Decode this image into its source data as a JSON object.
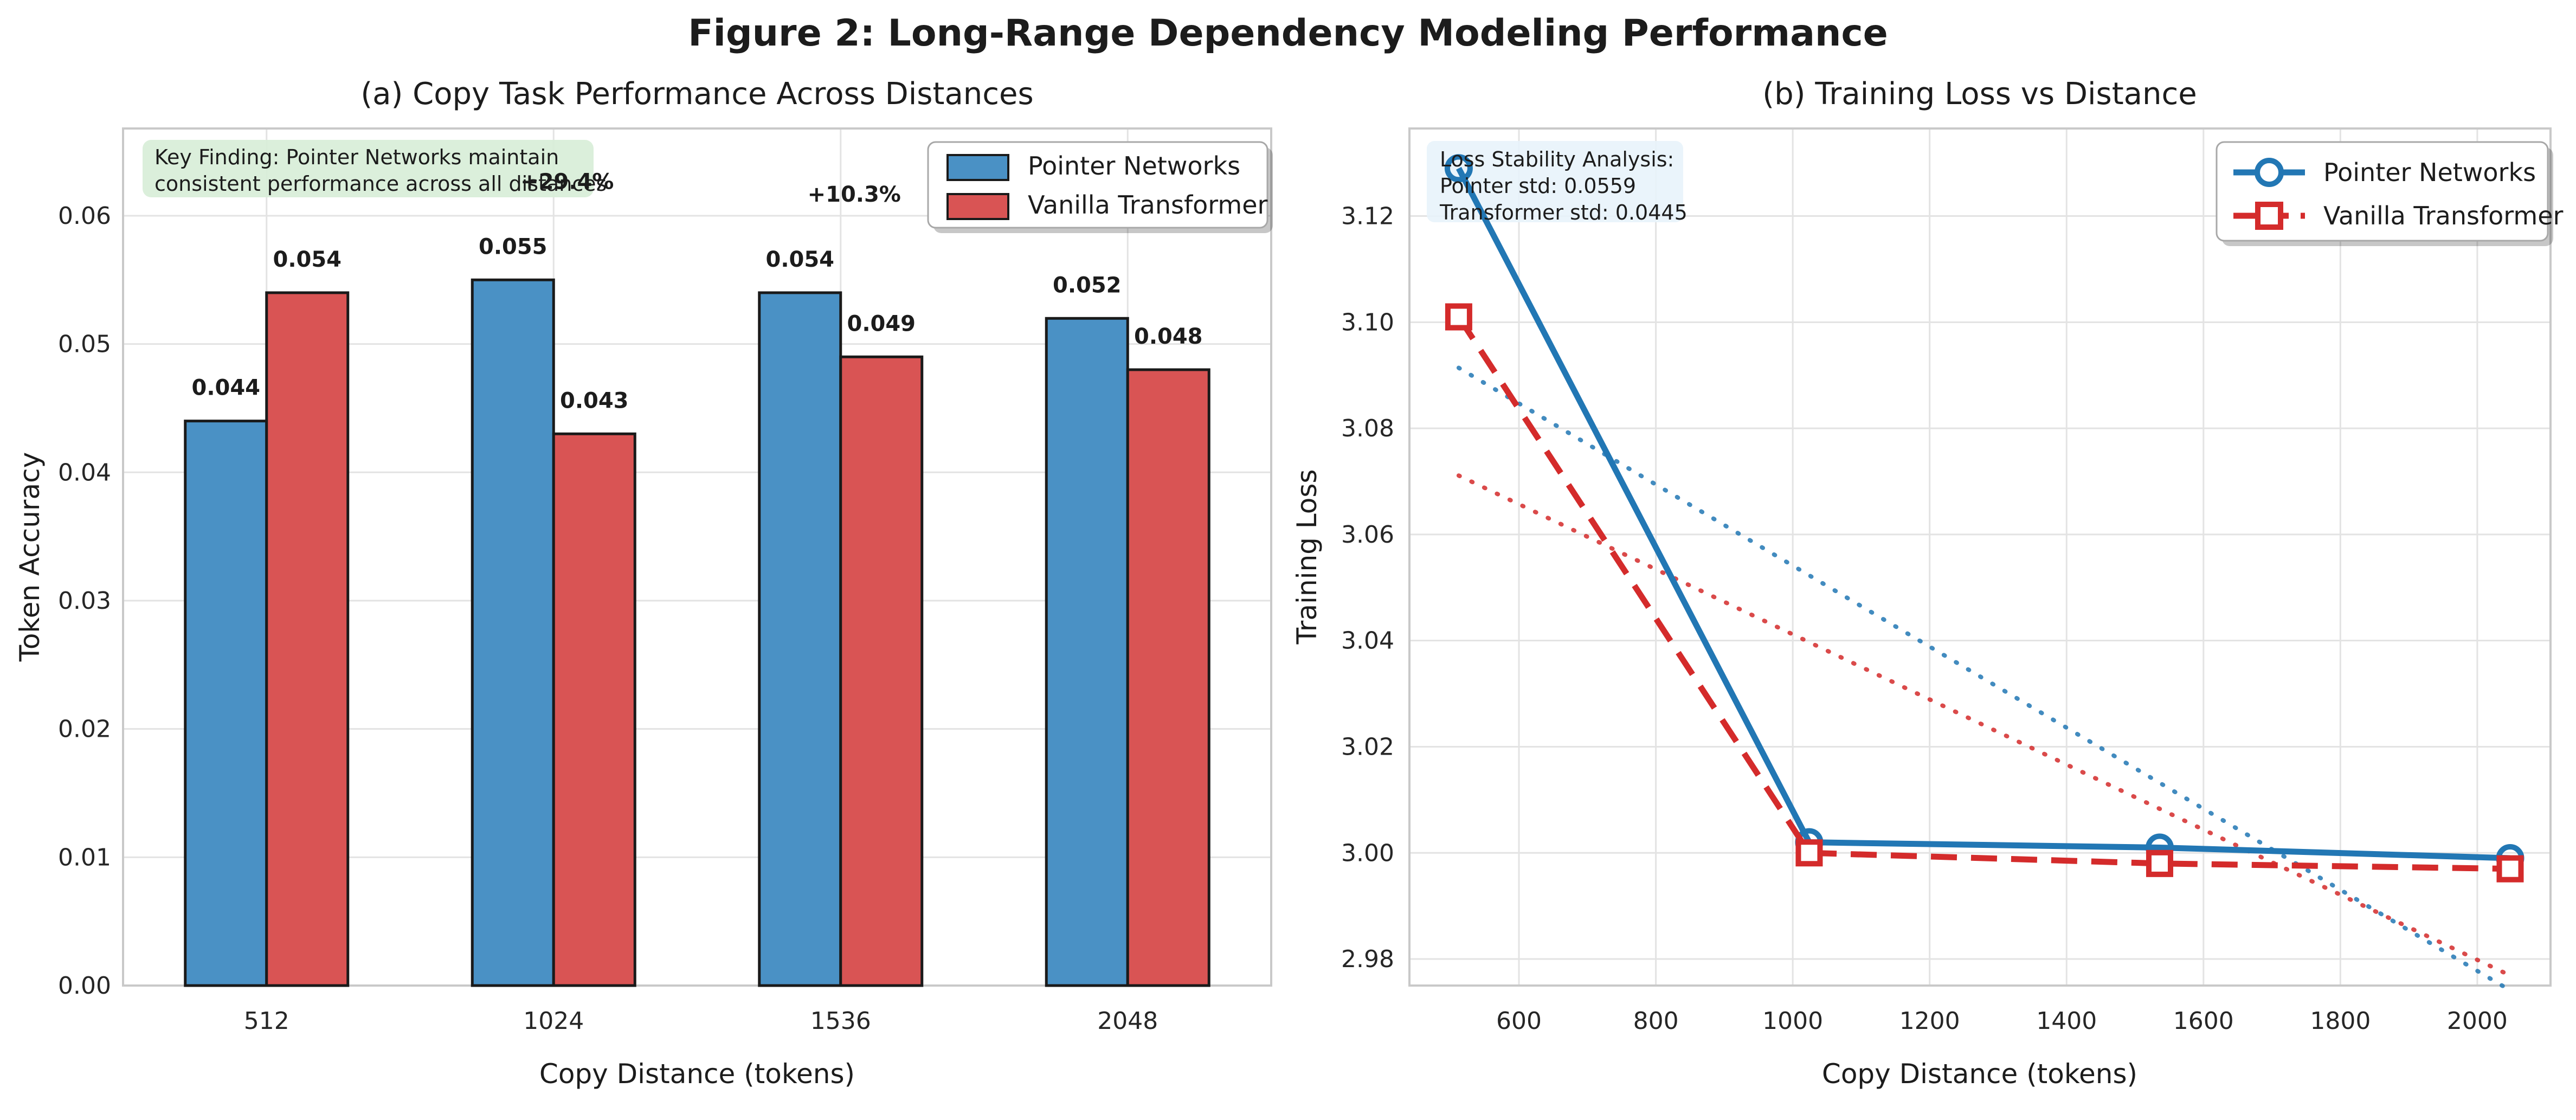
{
  "figure": {
    "title": "Figure 2: Long-Range Dependency Modeling Performance"
  },
  "colors": {
    "bar_blue": "#4a91c5",
    "bar_red": "#d95454",
    "line_blue": "#2277b4",
    "line_red": "#d42b2b",
    "green": "#2ca02c",
    "grid": "#e3e3e3",
    "spine": "#c9c9c9",
    "key_finding_bg": "#d8eed8",
    "loss_box_bg": "#e7f3fa",
    "edge": "#1a1a1a"
  },
  "chart_data": [
    {
      "type": "bar",
      "panel": "a",
      "title": "(a) Copy Task Performance Across Distances",
      "xlabel": "Copy Distance (tokens)",
      "ylabel": "Token Accuracy",
      "categories": [
        "512",
        "1024",
        "1536",
        "2048"
      ],
      "series": [
        {
          "name": "Pointer Networks",
          "color_key": "bar_blue",
          "values": [
            0.044,
            0.055,
            0.054,
            0.052
          ],
          "value_labels": [
            "0.044",
            "0.055",
            "0.054",
            "0.052"
          ]
        },
        {
          "name": "Vanilla Transformer",
          "color_key": "bar_red",
          "values": [
            0.054,
            0.043,
            0.049,
            0.048
          ],
          "value_labels": [
            "0.054",
            "0.043",
            "0.049",
            "0.048"
          ]
        }
      ],
      "ytick_labels": [
        "0.00",
        "0.01",
        "0.02",
        "0.03",
        "0.04",
        "0.05",
        "0.06"
      ],
      "yticks": [
        0,
        0.01,
        0.02,
        0.03,
        0.04,
        0.05,
        0.06
      ],
      "ylim": [
        0,
        0.0668
      ],
      "grid": true,
      "legend_position": "upper right",
      "gain_labels": [
        {
          "category_index": 1,
          "text": "+29.4%"
        },
        {
          "category_index": 2,
          "text": "+10.3%"
        }
      ],
      "annotation": {
        "lines": [
          "Key Finding: Pointer Networks maintain",
          "consistent performance across all distances"
        ]
      }
    },
    {
      "type": "line",
      "panel": "b",
      "title": "(b) Training Loss vs Distance",
      "xlabel": "Copy Distance (tokens)",
      "ylabel": "Training Loss",
      "x": [
        512,
        1024,
        1536,
        2048
      ],
      "series": [
        {
          "name": "Pointer Networks",
          "color_key": "line_blue",
          "marker": "circle",
          "style": "solid",
          "trend": true,
          "values": [
            3.129,
            3.002,
            3.001,
            2.999
          ]
        },
        {
          "name": "Vanilla Transformer",
          "color_key": "line_red",
          "marker": "square",
          "style": "dashed",
          "trend": true,
          "values": [
            3.101,
            3.0,
            2.998,
            2.997
          ]
        }
      ],
      "xticks": [
        600,
        800,
        1000,
        1200,
        1400,
        1600,
        1800,
        2000
      ],
      "xtick_labels": [
        "600",
        "800",
        "1000",
        "1200",
        "1400",
        "1600",
        "1800",
        "2000"
      ],
      "yticks": [
        2.98,
        3.0,
        3.02,
        3.04,
        3.06,
        3.08,
        3.1,
        3.12
      ],
      "ytick_labels": [
        "2.98",
        "3.00",
        "3.02",
        "3.04",
        "3.06",
        "3.08",
        "3.10",
        "3.12"
      ],
      "xlim": [
        440,
        2107
      ],
      "ylim": [
        2.975,
        3.1365
      ],
      "grid": true,
      "legend_position": "upper right",
      "annotation": {
        "lines": [
          "Loss Stability Analysis:",
          "Pointer std: 0.0559",
          "Transformer std: 0.0445"
        ]
      }
    }
  ]
}
